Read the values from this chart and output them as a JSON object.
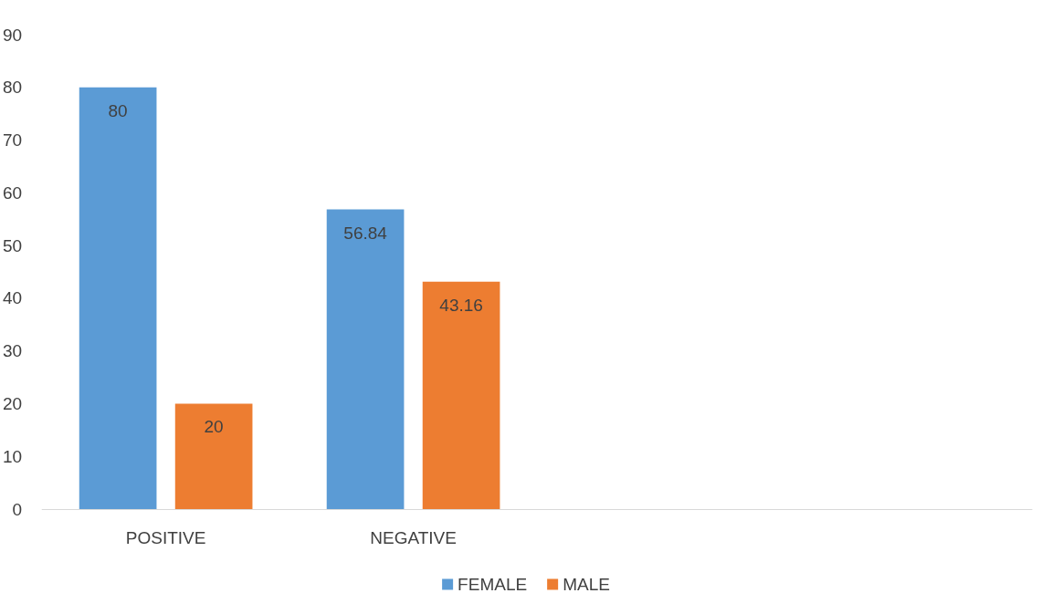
{
  "chart_data": {
    "type": "bar",
    "categories": [
      "POSITIVE",
      "NEGATIVE",
      null,
      null
    ],
    "series": [
      {
        "name": "FEMALE",
        "color": "#5b9bd5",
        "values": [
          80,
          56.84,
          null,
          null
        ]
      },
      {
        "name": "MALE",
        "color": "#ed7d31",
        "values": [
          20,
          43.16,
          null,
          null
        ]
      }
    ],
    "ylim": [
      0,
      90
    ],
    "yticks": [
      0,
      10,
      20,
      30,
      40,
      50,
      60,
      70,
      80,
      90
    ],
    "grid": false,
    "legend": "bottom",
    "data_labels": true
  }
}
